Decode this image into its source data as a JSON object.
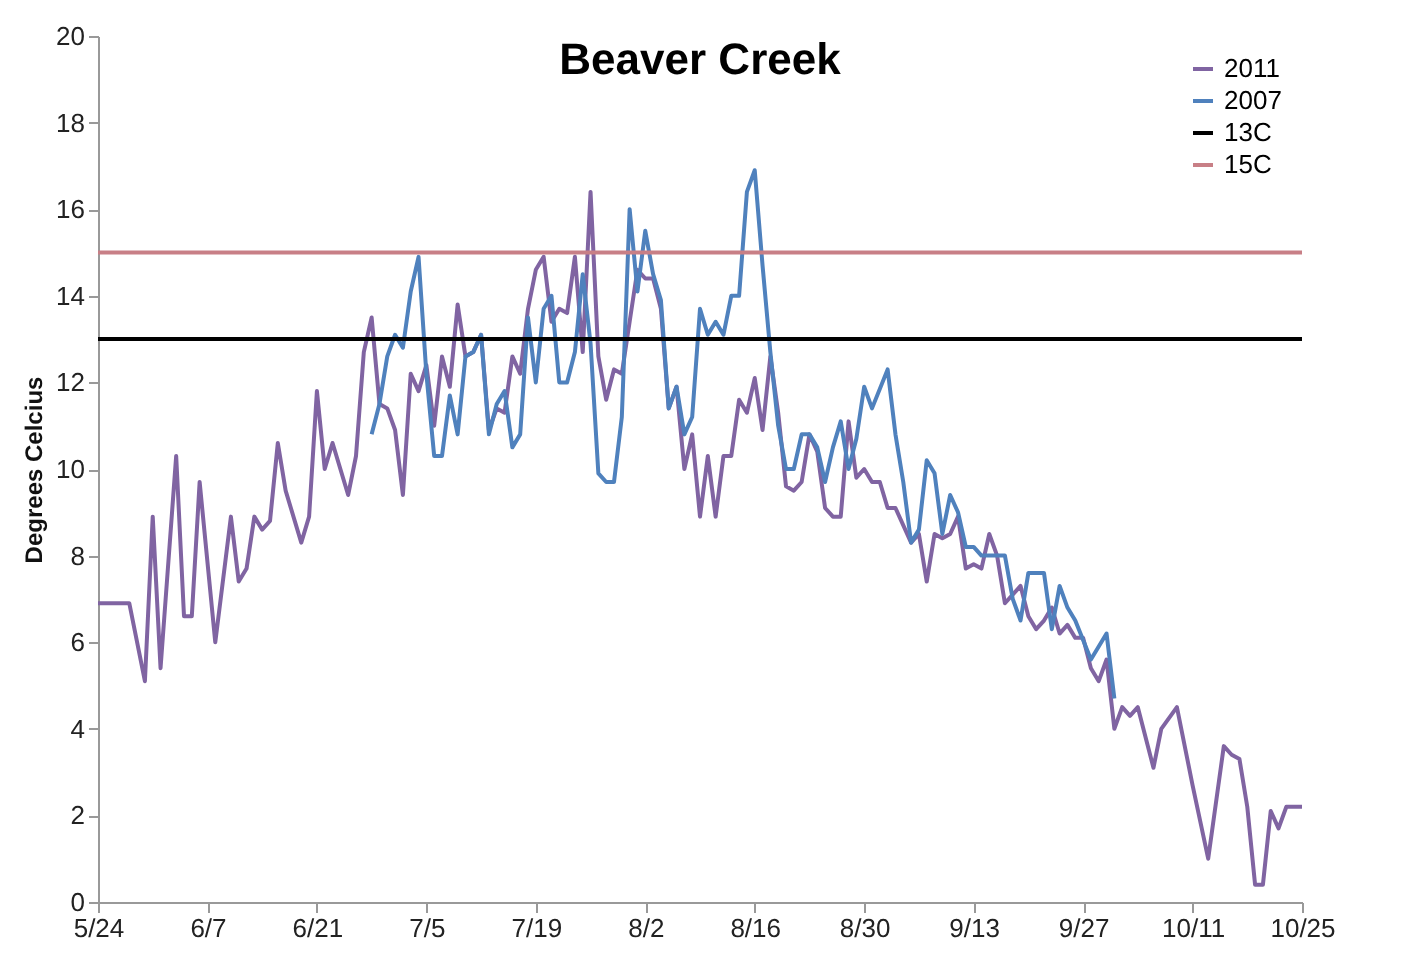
{
  "chart_data": {
    "type": "line",
    "title": "Beaver Creek",
    "ylabel": "Degrees Celcius",
    "xlim": [
      "--05-24",
      "--10-25"
    ],
    "xticks": [
      {
        "value": "--05-24",
        "label": "5/24"
      },
      {
        "value": "--06-07",
        "label": "6/7"
      },
      {
        "value": "--06-21",
        "label": "6/21"
      },
      {
        "value": "--07-05",
        "label": "7/5"
      },
      {
        "value": "--07-19",
        "label": "7/19"
      },
      {
        "value": "--08-02",
        "label": "8/2"
      },
      {
        "value": "--08-16",
        "label": "8/16"
      },
      {
        "value": "--08-30",
        "label": "8/30"
      },
      {
        "value": "--09-13",
        "label": "9/13"
      },
      {
        "value": "--09-27",
        "label": "9/27"
      },
      {
        "value": "--10-11",
        "label": "10/11"
      },
      {
        "value": "--10-25",
        "label": "10/25"
      }
    ],
    "ylim": [
      0,
      20
    ],
    "yticks": [
      0,
      2,
      4,
      6,
      8,
      10,
      12,
      14,
      16,
      18,
      20
    ],
    "grid": false,
    "legend": "top right",
    "marker": "none",
    "line_style": "solid",
    "series": [
      {
        "name": "2011",
        "color": "#8064a2",
        "x": [
          "--05-24",
          "--05-28",
          "--05-30",
          "--05-31",
          "--06-01",
          "--06-03",
          "--06-04",
          "--06-05",
          "--06-06",
          "--06-08",
          "--06-10",
          "--06-11",
          "--06-12",
          "--06-13",
          "--06-14",
          "--06-15",
          "--06-16",
          "--06-17",
          "--06-19",
          "--06-20",
          "--06-21",
          "--06-22",
          "--06-23",
          "--06-25",
          "--06-26",
          "--06-27",
          "--06-28",
          "--06-29",
          "--06-30",
          "--07-01",
          "--07-02",
          "--07-03",
          "--07-04",
          "--07-05",
          "--07-06",
          "--07-07",
          "--07-08",
          "--07-09",
          "--07-10",
          "--07-11",
          "--07-12",
          "--07-13",
          "--07-14",
          "--07-15",
          "--07-16",
          "--07-17",
          "--07-18",
          "--07-19",
          "--07-20",
          "--07-21",
          "--07-22",
          "--07-23",
          "--07-24",
          "--07-25",
          "--07-26",
          "--07-27",
          "--07-28",
          "--07-29",
          "--07-30",
          "--07-31",
          "--08-01",
          "--08-02",
          "--08-03",
          "--08-04",
          "--08-05",
          "--08-06",
          "--08-07",
          "--08-08",
          "--08-09",
          "--08-10",
          "--08-11",
          "--08-12",
          "--08-13",
          "--08-14",
          "--08-15",
          "--08-16",
          "--08-17",
          "--08-18",
          "--08-19",
          "--08-20",
          "--08-21",
          "--08-22",
          "--08-23",
          "--08-24",
          "--08-25",
          "--08-26",
          "--08-27",
          "--08-28",
          "--08-29",
          "--08-30",
          "--08-31",
          "--09-01",
          "--09-02",
          "--09-03",
          "--09-05",
          "--09-06",
          "--09-07",
          "--09-08",
          "--09-09",
          "--09-10",
          "--09-11",
          "--09-12",
          "--09-13",
          "--09-14",
          "--09-15",
          "--09-16",
          "--09-17",
          "--09-19",
          "--09-20",
          "--09-21",
          "--09-22",
          "--09-23",
          "--09-24",
          "--09-25",
          "--09-26",
          "--09-27",
          "--09-28",
          "--09-29",
          "--09-30",
          "--10-01",
          "--10-02",
          "--10-03",
          "--10-04",
          "--10-06",
          "--10-07",
          "--10-09",
          "--10-11",
          "--10-13",
          "--10-15",
          "--10-16",
          "--10-17",
          "--10-18",
          "--10-19",
          "--10-20",
          "--10-21",
          "--10-22",
          "--10-23",
          "--10-25"
        ],
        "values": [
          6.9,
          6.9,
          5.1,
          8.9,
          5.4,
          10.3,
          6.6,
          6.6,
          9.7,
          6.0,
          8.9,
          7.4,
          7.7,
          8.9,
          8.6,
          8.8,
          10.6,
          9.5,
          8.3,
          8.9,
          11.8,
          10.0,
          10.6,
          9.4,
          10.3,
          12.7,
          13.5,
          11.5,
          11.4,
          10.9,
          9.4,
          12.2,
          11.8,
          12.4,
          11.0,
          12.6,
          11.9,
          13.8,
          12.6,
          12.7,
          13.1,
          10.9,
          11.4,
          11.3,
          12.6,
          12.2,
          13.7,
          14.6,
          14.9,
          13.4,
          13.7,
          13.6,
          14.9,
          12.7,
          16.4,
          12.6,
          11.6,
          12.3,
          12.2,
          13.4,
          14.6,
          14.4,
          14.4,
          13.7,
          11.4,
          11.9,
          10.0,
          10.8,
          8.9,
          10.3,
          8.9,
          10.3,
          10.3,
          11.6,
          11.3,
          12.1,
          10.9,
          12.6,
          11.3,
          9.6,
          9.5,
          9.7,
          10.8,
          10.4,
          9.1,
          8.9,
          8.9,
          11.1,
          9.8,
          10.0,
          9.7,
          9.7,
          9.1,
          9.1,
          8.3,
          8.5,
          7.4,
          8.5,
          8.4,
          8.5,
          8.9,
          7.7,
          7.8,
          7.7,
          8.5,
          8.0,
          6.9,
          7.3,
          6.6,
          6.3,
          6.5,
          6.8,
          6.2,
          6.4,
          6.1,
          6.1,
          5.4,
          5.1,
          5.6,
          4.0,
          4.5,
          4.3,
          4.5,
          3.1,
          4.0,
          4.5,
          2.7,
          1.0,
          3.6,
          3.4,
          3.3,
          2.2,
          0.4,
          0.4,
          2.1,
          1.7,
          2.2,
          2.2
        ]
      },
      {
        "name": "2007",
        "color": "#4f81bd",
        "x": [
          "--06-28",
          "--06-29",
          "--06-30",
          "--07-01",
          "--07-02",
          "--07-03",
          "--07-04",
          "--07-05",
          "--07-06",
          "--07-07",
          "--07-08",
          "--07-09",
          "--07-10",
          "--07-11",
          "--07-12",
          "--07-13",
          "--07-14",
          "--07-15",
          "--07-16",
          "--07-17",
          "--07-18",
          "--07-19",
          "--07-20",
          "--07-21",
          "--07-22",
          "--07-23",
          "--07-24",
          "--07-25",
          "--07-26",
          "--07-27",
          "--07-28",
          "--07-29",
          "--07-30",
          "--07-31",
          "--08-01",
          "--08-02",
          "--08-03",
          "--08-04",
          "--08-05",
          "--08-06",
          "--08-07",
          "--08-08",
          "--08-09",
          "--08-10",
          "--08-11",
          "--08-12",
          "--08-13",
          "--08-14",
          "--08-15",
          "--08-16",
          "--08-17",
          "--08-18",
          "--08-19",
          "--08-20",
          "--08-21",
          "--08-22",
          "--08-23",
          "--08-24",
          "--08-25",
          "--08-26",
          "--08-27",
          "--08-28",
          "--08-29",
          "--08-30",
          "--08-31",
          "--09-02",
          "--09-03",
          "--09-04",
          "--09-05",
          "--09-06",
          "--09-07",
          "--09-08",
          "--09-09",
          "--09-10",
          "--09-11",
          "--09-12",
          "--09-13",
          "--09-14",
          "--09-17",
          "--09-18",
          "--09-19",
          "--09-20",
          "--09-22",
          "--09-23",
          "--09-24",
          "--09-25",
          "--09-26",
          "--09-28",
          "--09-30",
          "--10-01"
        ],
        "values": [
          10.8,
          11.5,
          12.6,
          13.1,
          12.8,
          14.1,
          14.9,
          12.2,
          10.3,
          10.3,
          11.7,
          10.8,
          12.6,
          12.7,
          13.1,
          10.8,
          11.5,
          11.8,
          10.5,
          10.8,
          13.5,
          12.0,
          13.7,
          14.0,
          12.0,
          12.0,
          12.7,
          14.5,
          12.9,
          9.9,
          9.7,
          9.7,
          11.2,
          16.0,
          14.1,
          15.5,
          14.5,
          13.9,
          11.4,
          11.9,
          10.8,
          11.2,
          13.7,
          13.1,
          13.4,
          13.1,
          14.0,
          14.0,
          16.4,
          16.9,
          14.7,
          12.7,
          11.0,
          10.0,
          10.0,
          10.8,
          10.8,
          10.5,
          9.7,
          10.5,
          11.1,
          10.0,
          10.7,
          11.9,
          11.4,
          12.3,
          10.8,
          9.7,
          8.3,
          8.6,
          10.2,
          9.9,
          8.5,
          9.4,
          9.0,
          8.2,
          8.2,
          8.0,
          8.0,
          7.0,
          6.5,
          7.6,
          7.6,
          6.3,
          7.3,
          6.8,
          6.5,
          5.6,
          6.2,
          4.7
        ]
      },
      {
        "name": "13C",
        "color": "#000000",
        "x": [
          "--05-24",
          "--10-25"
        ],
        "values": [
          13,
          13
        ]
      },
      {
        "name": "15C",
        "color": "#c87f86",
        "x": [
          "--05-24",
          "--10-25"
        ],
        "values": [
          15,
          15
        ]
      }
    ]
  }
}
